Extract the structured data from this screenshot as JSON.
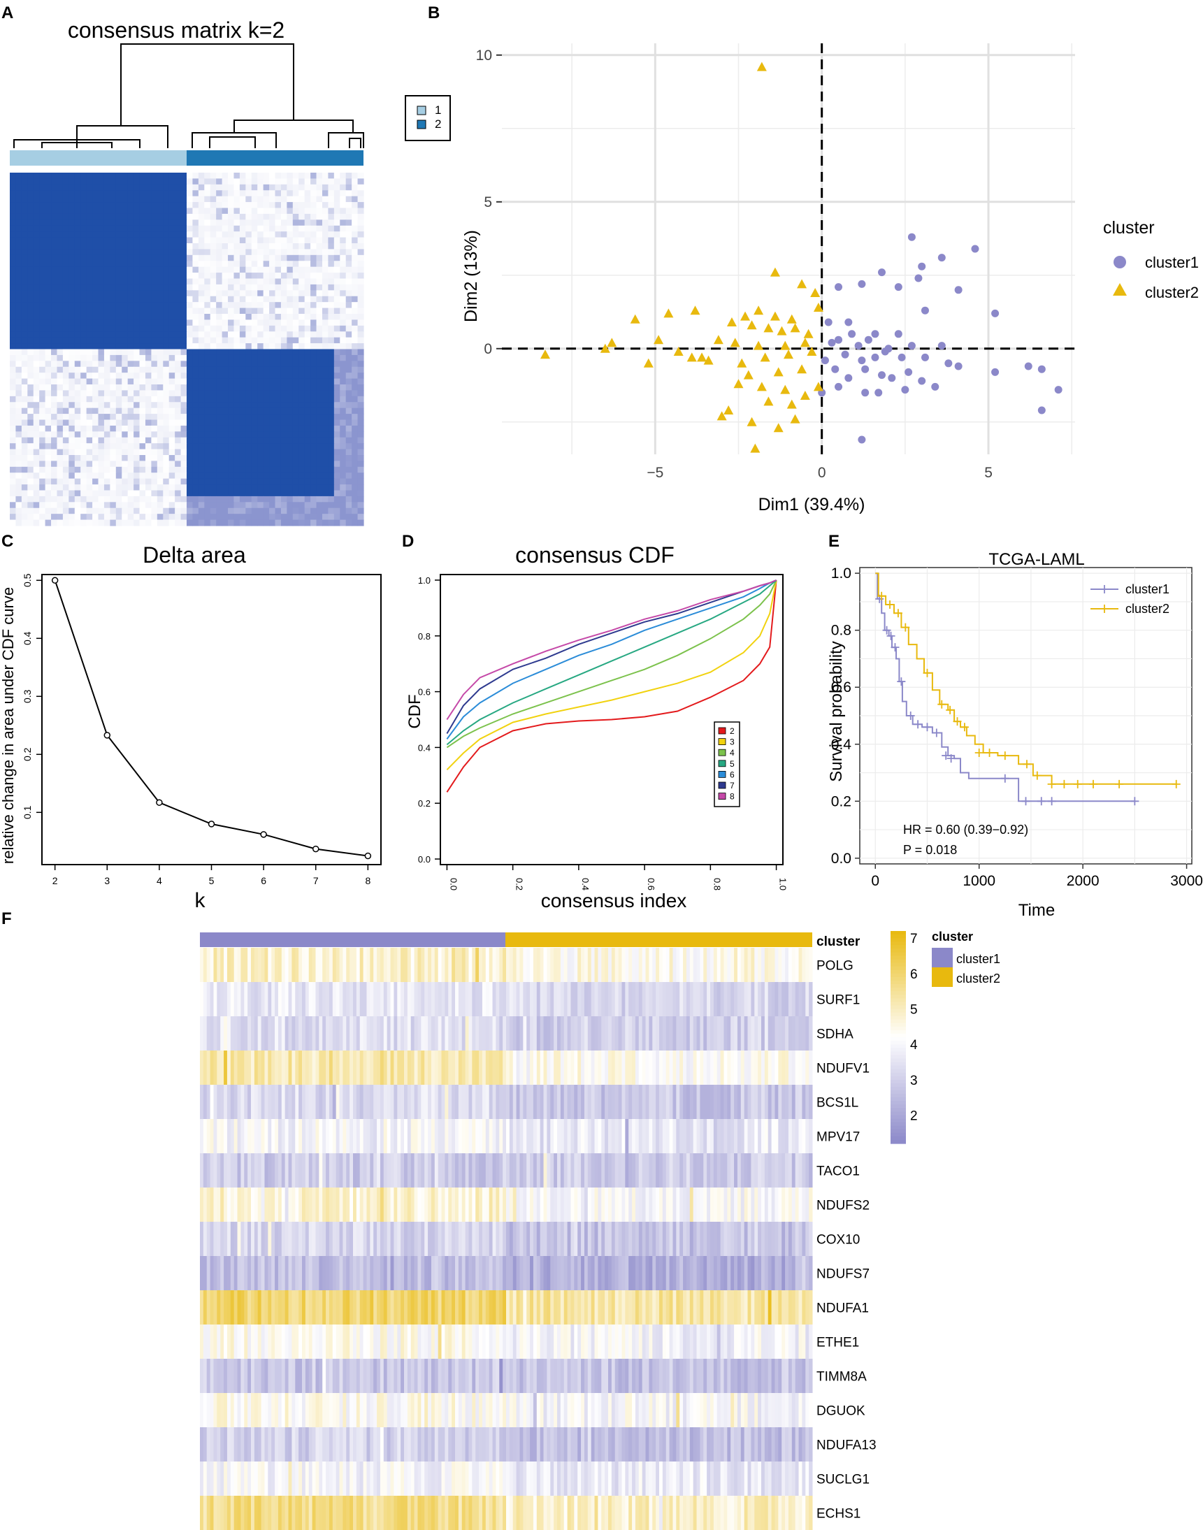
{
  "panel_labels": {
    "a": "A",
    "b": "B",
    "c": "C",
    "d": "D",
    "e": "E",
    "f": "F"
  },
  "chart_data": [
    {
      "panel": "A",
      "type": "heatmap",
      "title": "consensus matrix k=2",
      "legend": [
        {
          "label": "1",
          "color": "#a6cee3"
        },
        {
          "label": "2",
          "color": "#1f78b4"
        }
      ],
      "clusters": [
        {
          "name": "1",
          "fraction": 0.5
        },
        {
          "name": "2",
          "fraction": 0.5
        }
      ],
      "colors": {
        "high": "#1f4fa8",
        "low": "#ffffff",
        "mid": "#e3e6f2"
      }
    },
    {
      "panel": "B",
      "type": "scatter",
      "xlabel": "Dim1 (39.4%)",
      "ylabel": "Dim2 (13%)",
      "xlim": [
        -9.6,
        7.6
      ],
      "ylim": [
        -3.6,
        10.4
      ],
      "xticks": [
        -5,
        0,
        5
      ],
      "xtick_labels": [
        "−5",
        "0",
        "5"
      ],
      "yticks": [
        0,
        5,
        10
      ],
      "ytick_labels": [
        "0",
        "5",
        "10"
      ],
      "legend_title": "cluster",
      "series": [
        {
          "name": "cluster1",
          "marker": "circle",
          "color": "#8b88c9",
          "points": [
            [
              2.7,
              3.8
            ],
            [
              3.0,
              2.8
            ],
            [
              3.6,
              3.1
            ],
            [
              4.6,
              3.4
            ],
            [
              1.2,
              2.2
            ],
            [
              1.8,
              2.6
            ],
            [
              0.5,
              2.1
            ],
            [
              2.9,
              2.4
            ],
            [
              4.1,
              2.0
            ],
            [
              2.3,
              2.1
            ],
            [
              5.2,
              1.2
            ],
            [
              3.1,
              1.3
            ],
            [
              0.8,
              0.9
            ],
            [
              0.2,
              0.9
            ],
            [
              0.9,
              0.5
            ],
            [
              1.6,
              0.5
            ],
            [
              2.3,
              0.5
            ],
            [
              1.1,
              0.1
            ],
            [
              2.0,
              0.0
            ],
            [
              2.7,
              0.1
            ],
            [
              3.6,
              0.1
            ],
            [
              0.3,
              0.2
            ],
            [
              0.5,
              0.3
            ],
            [
              1.4,
              0.3
            ],
            [
              1.9,
              -0.1
            ],
            [
              0.7,
              -0.2
            ],
            [
              1.2,
              -0.4
            ],
            [
              1.6,
              -0.3
            ],
            [
              2.4,
              -0.3
            ],
            [
              3.1,
              -0.3
            ],
            [
              3.8,
              -0.5
            ],
            [
              4.1,
              -0.6
            ],
            [
              6.2,
              -0.6
            ],
            [
              6.6,
              -0.7
            ],
            [
              5.2,
              -0.8
            ],
            [
              0.1,
              -0.4
            ],
            [
              0.4,
              -0.7
            ],
            [
              0.8,
              -1.0
            ],
            [
              1.3,
              -0.7
            ],
            [
              1.8,
              -0.9
            ],
            [
              2.1,
              -1.0
            ],
            [
              2.6,
              -0.8
            ],
            [
              3.0,
              -1.1
            ],
            [
              0.5,
              -1.3
            ],
            [
              1.3,
              -1.5
            ],
            [
              1.7,
              -1.5
            ],
            [
              2.5,
              -1.4
            ],
            [
              3.4,
              -1.3
            ],
            [
              7.1,
              -1.4
            ],
            [
              6.6,
              -2.1
            ],
            [
              1.2,
              -3.1
            ],
            [
              0.0,
              -1.5
            ]
          ]
        },
        {
          "name": "cluster2",
          "marker": "triangle",
          "color": "#e8b90e",
          "points": [
            [
              -1.8,
              9.6
            ],
            [
              -1.4,
              2.6
            ],
            [
              -0.6,
              2.2
            ],
            [
              -0.2,
              1.9
            ],
            [
              -0.1,
              1.4
            ],
            [
              -1.9,
              1.3
            ],
            [
              -3.8,
              1.3
            ],
            [
              -4.6,
              1.2
            ],
            [
              -2.3,
              1.1
            ],
            [
              -1.4,
              1.1
            ],
            [
              -0.9,
              1.0
            ],
            [
              -2.7,
              0.9
            ],
            [
              -2.1,
              0.8
            ],
            [
              -1.6,
              0.7
            ],
            [
              -0.8,
              0.7
            ],
            [
              -1.2,
              0.6
            ],
            [
              -0.4,
              0.5
            ],
            [
              -5.6,
              1.0
            ],
            [
              -6.3,
              0.2
            ],
            [
              -4.9,
              0.3
            ],
            [
              -3.1,
              0.3
            ],
            [
              -2.6,
              0.2
            ],
            [
              -1.9,
              0.1
            ],
            [
              -1.1,
              0.1
            ],
            [
              -0.5,
              0.2
            ],
            [
              -6.5,
              0.0
            ],
            [
              -8.3,
              -0.2
            ],
            [
              -5.2,
              -0.5
            ],
            [
              -3.6,
              -0.3
            ],
            [
              -3.4,
              -0.4
            ],
            [
              -2.4,
              -0.5
            ],
            [
              -1.7,
              -0.3
            ],
            [
              -1.0,
              -0.2
            ],
            [
              -0.3,
              -0.1
            ],
            [
              -2.2,
              -0.9
            ],
            [
              -1.3,
              -0.8
            ],
            [
              -0.6,
              -0.7
            ],
            [
              -2.5,
              -1.2
            ],
            [
              -1.8,
              -1.3
            ],
            [
              -1.1,
              -1.4
            ],
            [
              -0.1,
              -1.3
            ],
            [
              -0.5,
              -1.6
            ],
            [
              -1.6,
              -1.8
            ],
            [
              -2.8,
              -2.1
            ],
            [
              -3.0,
              -2.3
            ],
            [
              -2.1,
              -2.5
            ],
            [
              -1.3,
              -2.7
            ],
            [
              -0.8,
              -2.4
            ],
            [
              -2.0,
              -3.4
            ],
            [
              -0.9,
              -1.9
            ],
            [
              -4.3,
              -0.1
            ],
            [
              -3.9,
              -0.3
            ]
          ]
        }
      ]
    },
    {
      "panel": "C",
      "type": "line",
      "title": "Delta area",
      "xlabel": "k",
      "ylabel": "relative change in area under CDF curve",
      "x": [
        2,
        3,
        4,
        5,
        6,
        7,
        8
      ],
      "values": [
        0.5,
        0.233,
        0.117,
        0.08,
        0.062,
        0.037,
        0.025
      ],
      "xlim": [
        1.75,
        8.25
      ],
      "ylim": [
        0.01,
        0.51
      ],
      "xticks": [
        "2",
        "3",
        "4",
        "5",
        "6",
        "7",
        "8"
      ],
      "yticks": [
        "0.1",
        "0.2",
        "0.3",
        "0.4",
        "0.5"
      ]
    },
    {
      "panel": "D",
      "type": "line",
      "title": "consensus CDF",
      "xlabel": "consensus index",
      "ylabel": "CDF",
      "xlim": [
        -0.02,
        1.02
      ],
      "ylim": [
        -0.02,
        1.02
      ],
      "xticks": [
        "0.0",
        "0.2",
        "0.4",
        "0.6",
        "0.8",
        "1.0"
      ],
      "yticks": [
        "0.0",
        "0.2",
        "0.4",
        "0.6",
        "0.8",
        "1.0"
      ],
      "x": [
        0,
        0.05,
        0.1,
        0.2,
        0.3,
        0.4,
        0.5,
        0.6,
        0.7,
        0.8,
        0.9,
        0.95,
        0.98,
        1.0
      ],
      "series": [
        {
          "name": "2",
          "color": "#e31a1c",
          "values": [
            0.24,
            0.33,
            0.4,
            0.46,
            0.485,
            0.495,
            0.5,
            0.51,
            0.53,
            0.58,
            0.64,
            0.7,
            0.76,
            1.0
          ]
        },
        {
          "name": "3",
          "color": "#f1d20f",
          "values": [
            0.32,
            0.38,
            0.43,
            0.49,
            0.52,
            0.545,
            0.57,
            0.6,
            0.63,
            0.67,
            0.74,
            0.8,
            0.88,
            1.0
          ]
        },
        {
          "name": "4",
          "color": "#7cc24c",
          "values": [
            0.4,
            0.44,
            0.47,
            0.52,
            0.56,
            0.6,
            0.64,
            0.68,
            0.73,
            0.79,
            0.86,
            0.91,
            0.95,
            1.0
          ]
        },
        {
          "name": "5",
          "color": "#27a882",
          "values": [
            0.41,
            0.46,
            0.5,
            0.56,
            0.61,
            0.66,
            0.71,
            0.76,
            0.81,
            0.86,
            0.92,
            0.95,
            0.98,
            1.0
          ]
        },
        {
          "name": "6",
          "color": "#2b8cd8",
          "values": [
            0.43,
            0.51,
            0.56,
            0.63,
            0.68,
            0.73,
            0.77,
            0.82,
            0.86,
            0.9,
            0.94,
            0.97,
            0.99,
            1.0
          ]
        },
        {
          "name": "7",
          "color": "#2e3a8f",
          "values": [
            0.45,
            0.55,
            0.61,
            0.68,
            0.72,
            0.77,
            0.81,
            0.85,
            0.88,
            0.92,
            0.96,
            0.98,
            0.99,
            1.0
          ]
        },
        {
          "name": "8",
          "color": "#c549a8",
          "values": [
            0.5,
            0.59,
            0.65,
            0.7,
            0.745,
            0.785,
            0.82,
            0.86,
            0.89,
            0.93,
            0.96,
            0.98,
            0.99,
            1.0
          ]
        }
      ]
    },
    {
      "panel": "E",
      "type": "line",
      "title": "TCGA-LAML",
      "xlabel": "Time",
      "ylabel": "Survival probability",
      "xlim": [
        -150,
        3050
      ],
      "ylim": [
        -0.02,
        1.02
      ],
      "xticks": [
        "0",
        "1000",
        "2000",
        "3000"
      ],
      "yticks": [
        "0.0",
        "0.2",
        "0.4",
        "0.6",
        "0.8",
        "1.0"
      ],
      "annotation_hr": "HR = 0.60 (0.39−0.92)",
      "annotation_p": "P = 0.018",
      "series": [
        {
          "name": "cluster1",
          "color": "#8b88c9",
          "steps": [
            [
              0,
              1.0
            ],
            [
              20,
              0.91
            ],
            [
              60,
              0.86
            ],
            [
              90,
              0.8
            ],
            [
              130,
              0.78
            ],
            [
              160,
              0.74
            ],
            [
              200,
              0.7
            ],
            [
              230,
              0.62
            ],
            [
              260,
              0.55
            ],
            [
              300,
              0.5
            ],
            [
              360,
              0.47
            ],
            [
              450,
              0.46
            ],
            [
              550,
              0.44
            ],
            [
              640,
              0.39
            ],
            [
              700,
              0.36
            ],
            [
              760,
              0.35
            ],
            [
              820,
              0.3
            ],
            [
              900,
              0.28
            ],
            [
              1050,
              0.28
            ],
            [
              1380,
              0.2
            ],
            [
              2500,
              0.2
            ]
          ],
          "censors": [
            [
              40,
              0.91
            ],
            [
              110,
              0.8
            ],
            [
              150,
              0.78
            ],
            [
              190,
              0.74
            ],
            [
              250,
              0.62
            ],
            [
              340,
              0.5
            ],
            [
              410,
              0.47
            ],
            [
              500,
              0.46
            ],
            [
              590,
              0.44
            ],
            [
              680,
              0.36
            ],
            [
              730,
              0.35
            ],
            [
              1250,
              0.28
            ],
            [
              1450,
              0.2
            ],
            [
              1600,
              0.2
            ],
            [
              1700,
              0.2
            ],
            [
              2500,
              0.2
            ]
          ]
        },
        {
          "name": "cluster2",
          "color": "#e8b90e",
          "steps": [
            [
              0,
              1.0
            ],
            [
              30,
              0.92
            ],
            [
              100,
              0.89
            ],
            [
              180,
              0.86
            ],
            [
              250,
              0.81
            ],
            [
              320,
              0.75
            ],
            [
              400,
              0.7
            ],
            [
              470,
              0.65
            ],
            [
              550,
              0.59
            ],
            [
              620,
              0.54
            ],
            [
              700,
              0.52
            ],
            [
              760,
              0.48
            ],
            [
              820,
              0.46
            ],
            [
              880,
              0.43
            ],
            [
              960,
              0.4
            ],
            [
              1040,
              0.37
            ],
            [
              1180,
              0.36
            ],
            [
              1380,
              0.33
            ],
            [
              1520,
              0.29
            ],
            [
              1700,
              0.26
            ],
            [
              2900,
              0.26
            ]
          ],
          "censors": [
            [
              60,
              0.92
            ],
            [
              140,
              0.89
            ],
            [
              220,
              0.86
            ],
            [
              290,
              0.81
            ],
            [
              500,
              0.65
            ],
            [
              640,
              0.54
            ],
            [
              720,
              0.52
            ],
            [
              790,
              0.48
            ],
            [
              860,
              0.46
            ],
            [
              1000,
              0.37
            ],
            [
              1100,
              0.37
            ],
            [
              1250,
              0.36
            ],
            [
              1460,
              0.33
            ],
            [
              1560,
              0.29
            ],
            [
              1700,
              0.26
            ],
            [
              1820,
              0.26
            ],
            [
              1950,
              0.26
            ],
            [
              2100,
              0.26
            ],
            [
              2350,
              0.26
            ],
            [
              2900,
              0.26
            ]
          ]
        }
      ]
    },
    {
      "panel": "F",
      "type": "heatmap",
      "annotation_label": "cluster",
      "legend_title": "cluster",
      "legend": [
        {
          "label": "cluster1",
          "color": "#8b88c9"
        },
        {
          "label": "cluster2",
          "color": "#e8b90e"
        }
      ],
      "colorbar_ticks": [
        "7",
        "6",
        "5",
        "4",
        "3",
        "2"
      ],
      "colorbar_range": [
        1.2,
        7.2
      ],
      "genes": [
        "POLG",
        "SURF1",
        "SDHA",
        "NDUFV1",
        "BCS1L",
        "MPV17",
        "TACO1",
        "NDUFS2",
        "COX10",
        "NDUFS7",
        "NDUFA1",
        "ETHE1",
        "TIMM8A",
        "DGUOK",
        "NDUFA13",
        "SUCLG1",
        "ECHS1"
      ],
      "row_means_cluster1": [
        4.8,
        3.6,
        3.4,
        5.2,
        3.3,
        4.0,
        2.9,
        4.8,
        3.2,
        2.6,
        6.0,
        4.3,
        2.8,
        4.3,
        3.1,
        4.0,
        5.6
      ],
      "row_means_cluster2": [
        4.4,
        3.2,
        3.0,
        4.3,
        2.8,
        3.6,
        2.9,
        4.1,
        2.7,
        2.2,
        5.3,
        3.9,
        2.7,
        4.0,
        2.6,
        3.7,
        4.9
      ]
    }
  ]
}
